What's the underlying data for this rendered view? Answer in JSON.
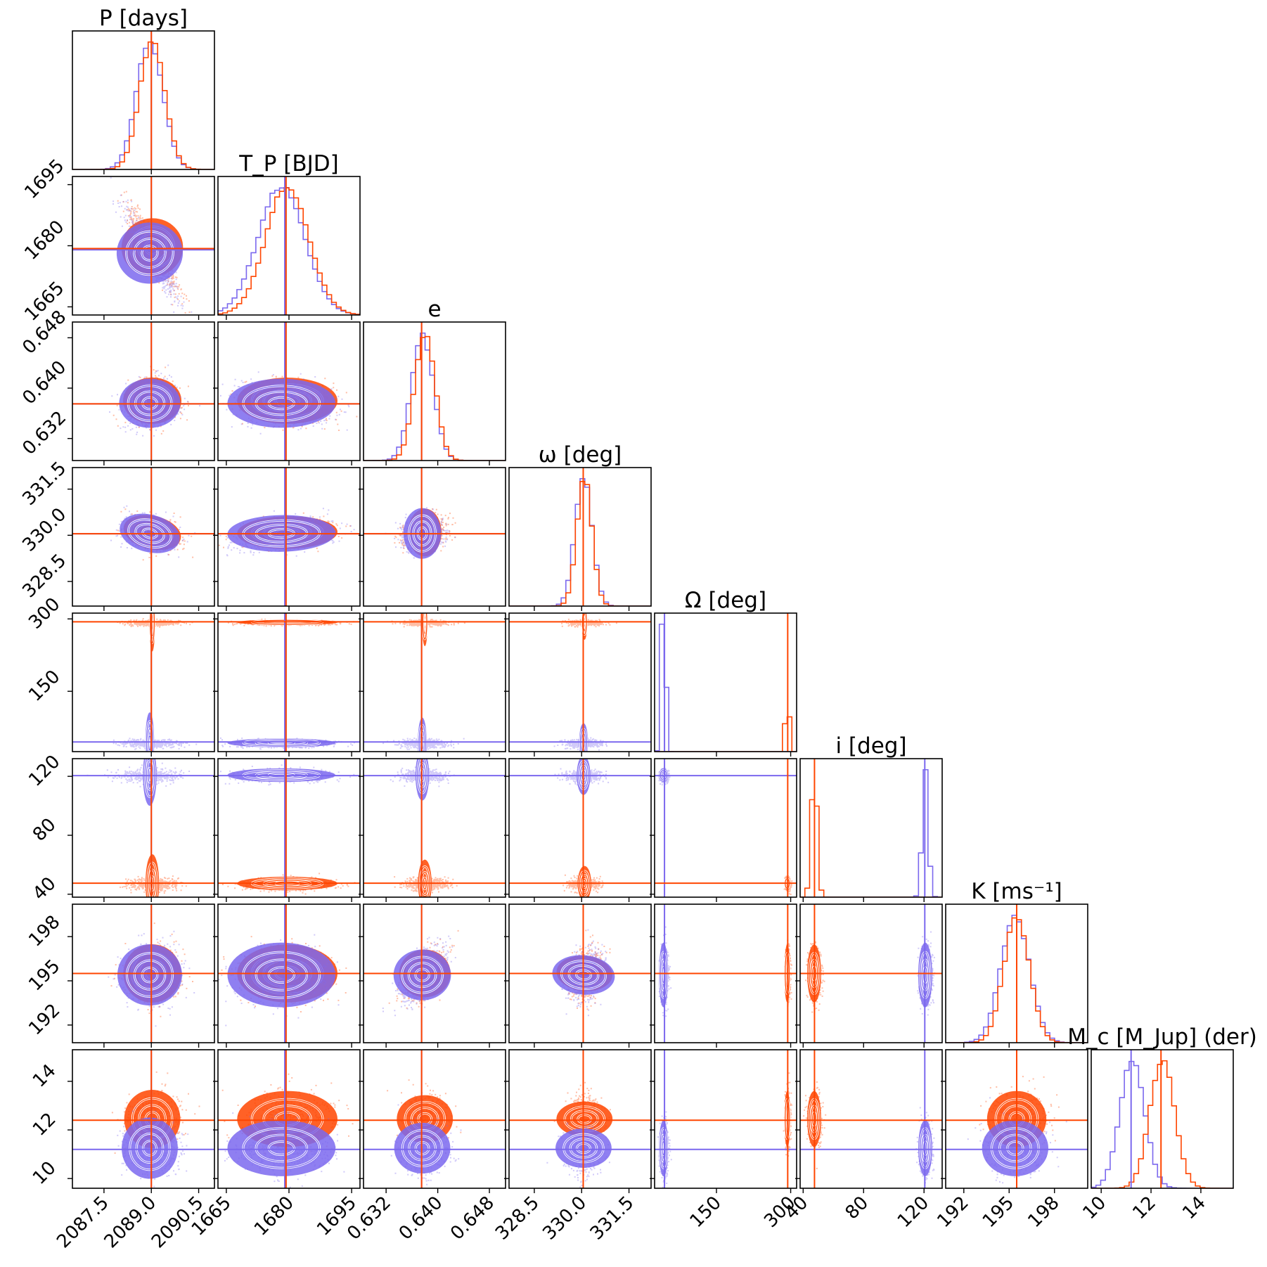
{
  "colors": {
    "series_a": "#7B68EE",
    "series_b": "#FF4500",
    "contour": "#ffffff"
  },
  "chart_data": {
    "type": "scatter",
    "layout": "corner-plot",
    "series": [
      {
        "name": "",
        "color": "#7B68EE"
      },
      {
        "name": "",
        "color": "#FF4500"
      }
    ],
    "params": [
      {
        "key": "P",
        "title": "P [days]",
        "lim": [
          2086.5,
          2091.0
        ],
        "ticks": [
          2087.5,
          2089.0,
          2090.5
        ],
        "tick_labels": [
          "2087.5",
          "2089.0",
          "2090.5"
        ],
        "truth": [
          2089.0,
          2089.0
        ],
        "mean": [
          2088.95,
          2089.03
        ],
        "sd": [
          0.42,
          0.4
        ]
      },
      {
        "key": "Tp",
        "title": "T_P [BJD]",
        "lim": [
          1663,
          1697
        ],
        "ticks": [
          1665,
          1680,
          1695
        ],
        "tick_labels": [
          "1665",
          "1680",
          "1695"
        ],
        "truth": [
          1679.0,
          1679.3
        ],
        "mean": [
          1678.2,
          1679.6
        ],
        "sd": [
          5.6,
          5.2
        ]
      },
      {
        "key": "e",
        "title": "e",
        "lim": [
          0.6285,
          0.6505
        ],
        "ticks": [
          0.632,
          0.64,
          0.648
        ],
        "tick_labels": [
          "0.632",
          "0.640",
          "0.648"
        ],
        "truth": [
          0.6375,
          0.6375
        ],
        "mean": [
          0.6376,
          0.638
        ],
        "sd": [
          0.0017,
          0.0016
        ]
      },
      {
        "key": "omega",
        "title": "ω [deg]",
        "lim": [
          327.7,
          332.2
        ],
        "ticks": [
          328.5,
          330.0,
          331.5
        ],
        "tick_labels": [
          "328.5",
          "330.0",
          "331.5"
        ],
        "truth": [
          330.05,
          330.05
        ],
        "mean": [
          330.06,
          330.09
        ],
        "sd": [
          0.27,
          0.24
        ]
      },
      {
        "key": "Omega",
        "title": "Ω [deg]",
        "lim": [
          25,
          312
        ],
        "ticks": [
          150,
          300
        ],
        "tick_labels": [
          "150",
          "300"
        ],
        "truth": [
          45,
          294
        ],
        "mean": [
          43,
          293
        ],
        "sd": [
          4.0,
          2.5
        ]
      },
      {
        "key": "i",
        "title": "i [deg]",
        "lim": [
          38,
          132
        ],
        "ticks": [
          40,
          80,
          120
        ],
        "tick_labels": [
          "40",
          "80",
          "120"
        ],
        "truth": [
          120.5,
          47.5
        ],
        "mean": [
          120.8,
          47.3
        ],
        "sd": [
          2.0,
          2.0
        ]
      },
      {
        "key": "K",
        "title": "K [ms⁻¹]",
        "lim": [
          190.8,
          200.2
        ],
        "ticks": [
          192,
          195,
          198
        ],
        "tick_labels": [
          "192",
          "195",
          "198"
        ],
        "truth": [
          195.5,
          195.5
        ],
        "mean": [
          195.4,
          195.5
        ],
        "sd": [
          0.95,
          0.85
        ]
      },
      {
        "key": "Mc",
        "title": "M_c [M_Jup] (der)",
        "lim": [
          9.6,
          15.3
        ],
        "ticks": [
          10,
          12,
          14
        ],
        "tick_labels": [
          "10",
          "12",
          "14"
        ],
        "truth": [
          11.2,
          12.4
        ],
        "mean": [
          11.25,
          12.45
        ],
        "sd": [
          0.5,
          0.5
        ]
      }
    ]
  }
}
